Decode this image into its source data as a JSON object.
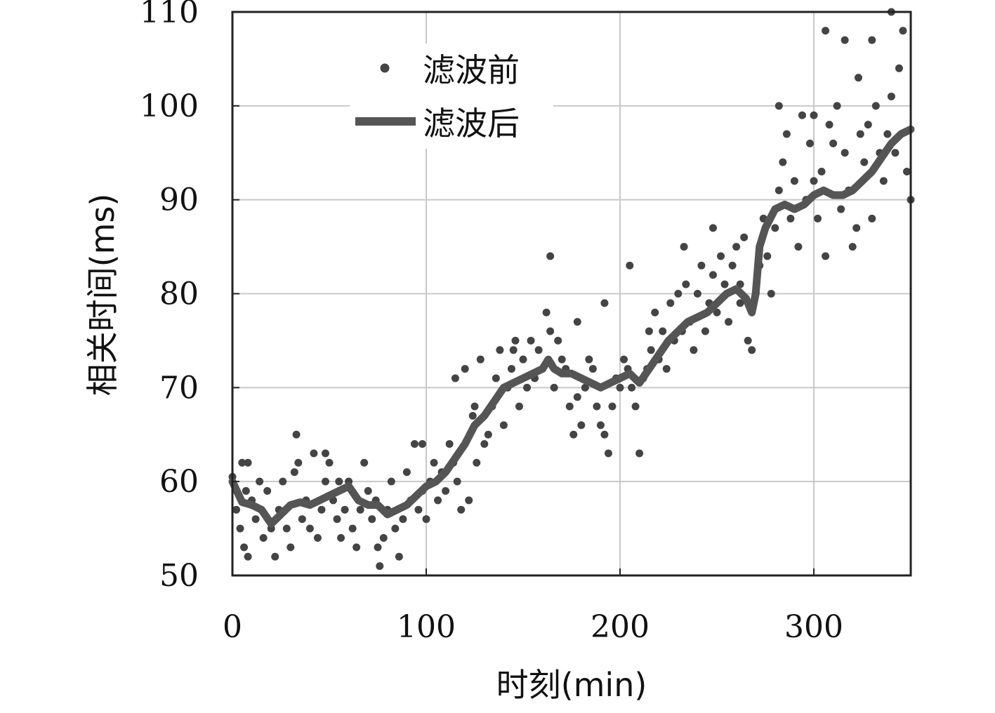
{
  "chart_data": {
    "type": "scatter",
    "xlabel": "时刻(min)",
    "ylabel": "相关时间(ms)",
    "xlim": [
      0,
      350
    ],
    "ylim": [
      50,
      110
    ],
    "xticks": [
      "0",
      "100",
      "200",
      "300"
    ],
    "yticks": [
      "50",
      "60",
      "70",
      "80",
      "90",
      "100",
      "110"
    ],
    "grid": true,
    "legend_position": "top-left",
    "colors": {
      "points": "#444444",
      "line": "#555555"
    },
    "series": [
      {
        "name": "滤波前",
        "kind": "scatter",
        "x": [
          0,
          2,
          4,
          5,
          6,
          7,
          8,
          10,
          12,
          14,
          16,
          18,
          20,
          22,
          24,
          26,
          28,
          30,
          32,
          34,
          36,
          38,
          40,
          42,
          44,
          46,
          48,
          50,
          52,
          54,
          56,
          58,
          60,
          62,
          64,
          66,
          68,
          70,
          72,
          74,
          76,
          78,
          80,
          82,
          84,
          86,
          88,
          90,
          92,
          94,
          96,
          98,
          100,
          102,
          104,
          106,
          108,
          110,
          112,
          114,
          116,
          118,
          120,
          122,
          124,
          126,
          128,
          130,
          132,
          134,
          136,
          138,
          140,
          142,
          144,
          146,
          148,
          150,
          152,
          154,
          156,
          158,
          160,
          162,
          164,
          166,
          168,
          170,
          172,
          174,
          176,
          178,
          180,
          182,
          184,
          186,
          188,
          190,
          192,
          194,
          196,
          198,
          200,
          202,
          204,
          206,
          208,
          210,
          212,
          214,
          216,
          218,
          220,
          222,
          224,
          226,
          228,
          230,
          232,
          234,
          236,
          238,
          240,
          242,
          244,
          246,
          248,
          250,
          252,
          254,
          256,
          258,
          260,
          262,
          264,
          266,
          268,
          270,
          272,
          274,
          276,
          278,
          280,
          282,
          284,
          286,
          288,
          290,
          292,
          294,
          296,
          298,
          300,
          302,
          304,
          306,
          308,
          310,
          312,
          314,
          316,
          318,
          320,
          322,
          324,
          326,
          328,
          330,
          332,
          334,
          336,
          338,
          340,
          342,
          344,
          346,
          348,
          350,
          8,
          33,
          48,
          55,
          75,
          98,
          115,
          125,
          145,
          164,
          178,
          192,
          205,
          215,
          233,
          248,
          262,
          282,
          300,
          306,
          316,
          323,
          330,
          340
        ],
        "y": [
          60.5,
          57,
          55,
          62,
          53,
          59,
          52,
          58,
          56,
          60,
          54,
          59,
          55,
          52,
          57,
          60,
          55,
          53,
          61,
          62,
          56,
          58,
          55,
          63,
          54,
          57,
          60,
          62,
          58,
          56,
          54,
          57,
          60,
          55,
          53,
          57,
          62,
          59,
          56,
          58,
          51,
          54,
          57,
          60,
          55,
          52,
          56,
          61,
          58,
          64,
          57,
          59,
          56,
          60,
          62,
          58,
          61,
          59,
          64,
          62,
          60,
          57,
          72,
          58,
          67,
          62,
          73,
          64,
          65,
          68,
          71,
          74,
          66,
          70,
          72,
          75,
          68,
          73,
          70,
          75,
          71,
          74,
          72,
          78,
          76,
          70,
          75,
          73,
          72,
          68,
          65,
          69,
          66,
          70,
          73,
          72,
          68,
          66,
          65,
          63,
          68,
          71,
          70,
          73,
          72,
          70,
          68,
          63,
          71,
          72,
          74,
          78,
          73,
          76,
          72,
          79,
          75,
          80,
          76,
          81,
          77,
          74,
          80,
          83,
          76,
          79,
          82,
          78,
          84,
          81,
          77,
          83,
          85,
          79,
          86,
          75,
          74,
          80,
          83,
          88,
          84,
          80,
          87,
          91,
          94,
          97,
          88,
          92,
          85,
          99,
          90,
          96,
          92,
          88,
          93,
          84,
          98,
          96,
          100,
          89,
          95,
          91,
          85,
          87,
          97,
          94,
          98,
          88,
          100,
          95,
          92,
          97,
          101,
          95,
          104,
          108,
          93,
          90,
          62,
          65,
          63,
          60,
          53,
          64,
          71,
          68,
          74,
          84,
          77,
          79,
          83,
          76,
          85,
          87,
          81,
          100,
          99,
          108,
          107,
          103,
          107,
          110
        ],
        "point_radius": 5.5
      },
      {
        "name": "滤波后",
        "kind": "line",
        "x": [
          0,
          5,
          10,
          15,
          20,
          25,
          30,
          35,
          40,
          45,
          50,
          55,
          60,
          65,
          70,
          75,
          80,
          85,
          90,
          95,
          100,
          105,
          110,
          115,
          120,
          125,
          130,
          135,
          140,
          145,
          150,
          155,
          160,
          163,
          166,
          170,
          175,
          180,
          185,
          190,
          195,
          200,
          205,
          210,
          215,
          220,
          225,
          230,
          235,
          240,
          245,
          250,
          255,
          260,
          265,
          268,
          270,
          272,
          275,
          280,
          285,
          290,
          295,
          300,
          305,
          310,
          315,
          320,
          325,
          330,
          335,
          340,
          345,
          350
        ],
        "y": [
          60,
          57.8,
          57.5,
          57,
          55.5,
          56.5,
          57.5,
          57.8,
          57.5,
          58,
          58.5,
          59,
          59.5,
          58,
          57.5,
          57.5,
          56.5,
          57,
          57.5,
          58.5,
          59.5,
          60,
          61,
          62.5,
          64,
          66,
          67,
          68.5,
          70,
          70.5,
          71,
          71.5,
          72,
          73,
          72,
          71.5,
          71.5,
          71,
          70.5,
          70,
          70.5,
          71,
          71.5,
          70.5,
          72,
          73.5,
          75,
          76,
          77,
          77.5,
          78,
          79,
          80,
          80.5,
          79.5,
          78,
          80,
          85,
          87,
          89,
          89.5,
          89,
          89.5,
          90.5,
          91,
          90.5,
          90.5,
          91,
          92,
          93,
          94.5,
          96,
          97,
          97.5
        ]
      }
    ]
  }
}
